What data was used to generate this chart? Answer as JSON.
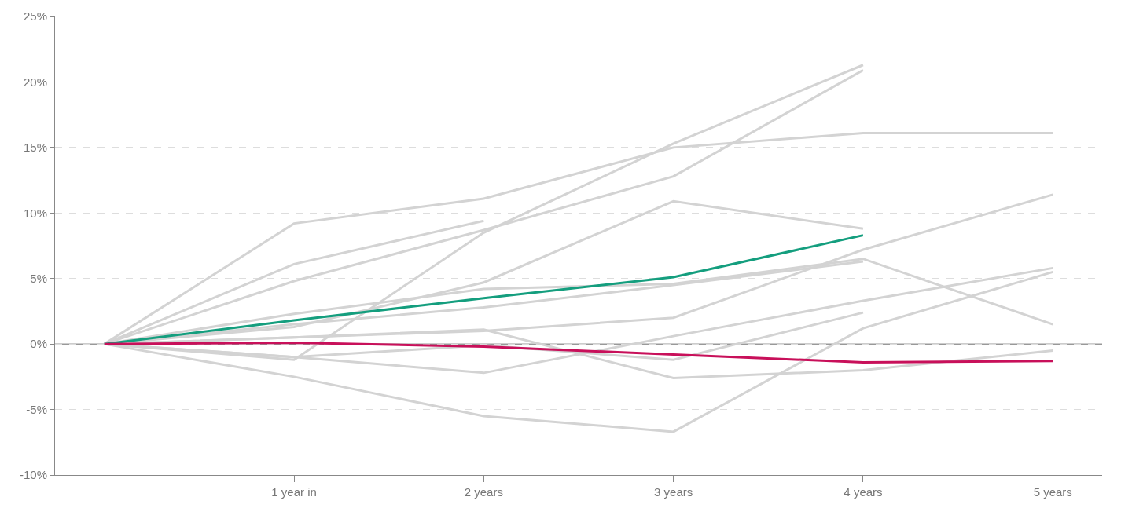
{
  "chart_data": {
    "type": "line",
    "categories": [
      null,
      "1 year in",
      "2 years",
      "3 years",
      "4 years",
      "5 years"
    ],
    "series": [
      {
        "color": "#d3d3d3",
        "values": [
          0,
          9.2,
          11.1,
          15.0,
          16.1,
          16.1
        ]
      },
      {
        "color": "#d3d3d3",
        "values": [
          0,
          6.1,
          9.4,
          null,
          null,
          null
        ]
      },
      {
        "color": "#d3d3d3",
        "values": [
          0,
          4.8,
          8.7,
          12.8,
          20.9,
          null
        ]
      },
      {
        "color": "#d3d3d3",
        "values": [
          0,
          -1.2,
          8.5,
          15.3,
          21.3,
          null
        ]
      },
      {
        "color": "#d3d3d3",
        "values": [
          0,
          1.3,
          4.7,
          10.9,
          8.8,
          null
        ]
      },
      {
        "color": "#d3d3d3",
        "values": [
          0,
          2.3,
          4.2,
          4.6,
          6.5,
          1.5
        ]
      },
      {
        "color": "#d3d3d3",
        "values": [
          0,
          1.5,
          2.8,
          4.5,
          6.3,
          null
        ]
      },
      {
        "color": "#d3d3d3",
        "values": [
          0,
          0.5,
          1.0,
          2.0,
          7.2,
          11.4
        ]
      },
      {
        "color": "#d3d3d3",
        "values": [
          0,
          -1.0,
          -2.2,
          0.6,
          3.3,
          5.8
        ]
      },
      {
        "color": "#d3d3d3",
        "values": [
          0,
          0.5,
          1.1,
          -2.6,
          -2.0,
          -0.5
        ]
      },
      {
        "color": "#d3d3d3",
        "values": [
          0,
          -2.5,
          -5.5,
          -6.7,
          1.2,
          5.5
        ]
      },
      {
        "color": "#d3d3d3",
        "values": [
          0,
          -1.0,
          -0.1,
          -1.2,
          2.4,
          null
        ]
      },
      {
        "color": "#149e7e",
        "values": [
          0,
          1.8,
          3.5,
          5.1,
          8.3,
          null
        ]
      },
      {
        "color": "#c8105a",
        "values": [
          0,
          0.1,
          -0.2,
          -0.8,
          -1.4,
          -1.3
        ]
      }
    ],
    "ylim": [
      -10,
      25
    ],
    "yticks": [
      {
        "value": -10,
        "label": "-10%"
      },
      {
        "value": -5,
        "label": "-5%"
      },
      {
        "value": 0,
        "label": "0%"
      },
      {
        "value": 5,
        "label": "5%"
      },
      {
        "value": 10,
        "label": "10%"
      },
      {
        "value": 15,
        "label": "15%"
      },
      {
        "value": 20,
        "label": "20%"
      },
      {
        "value": 25,
        "label": "25%"
      }
    ],
    "grid": "y",
    "line_style": "solid",
    "marker": "none",
    "ref_lines": [
      {
        "axis": "y",
        "value": 0,
        "color": "#999999"
      }
    ]
  }
}
